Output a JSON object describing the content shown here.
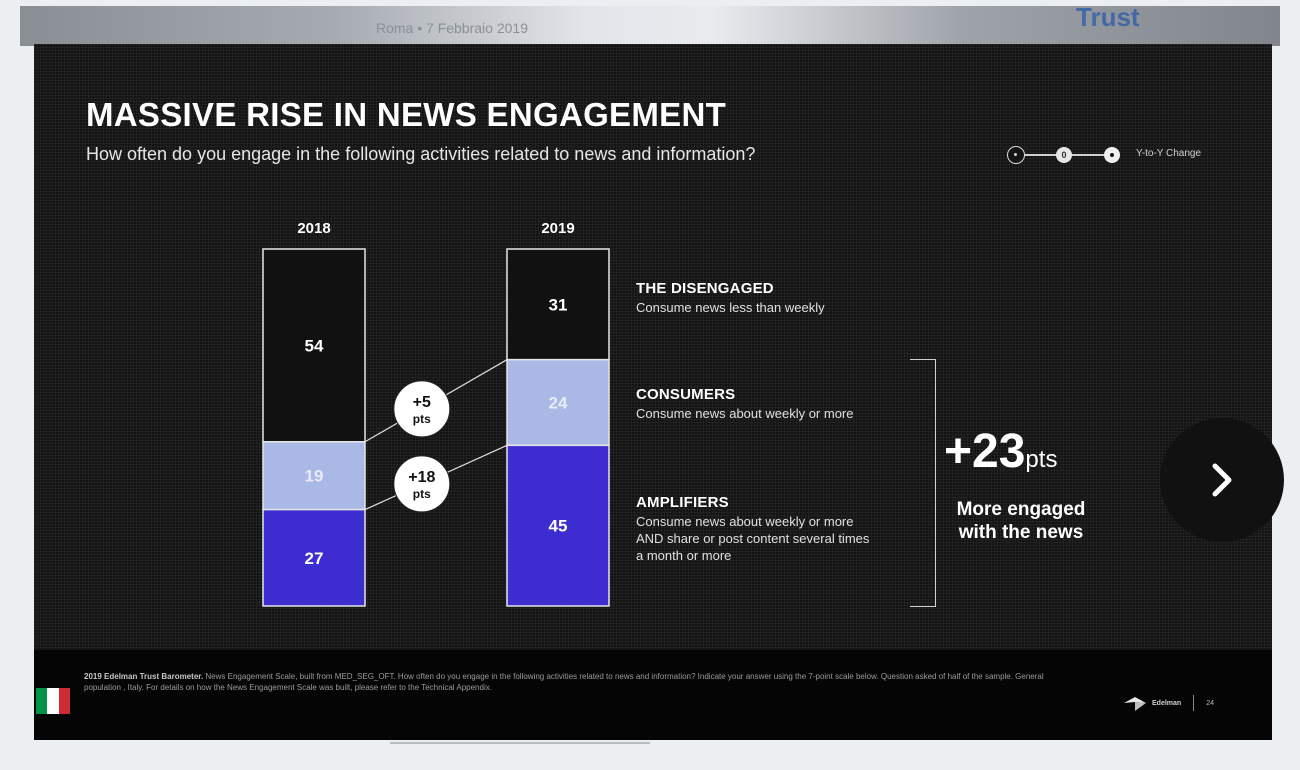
{
  "background": {
    "caption": "Roma • 7 Febbraio 2019",
    "title": "Trust"
  },
  "slide": {
    "title": "MASSIVE RISE IN NEWS ENGAGEMENT",
    "subtitle": "How often do you engage in the following activities related to news and information?",
    "legend_label": "Y-to-Y Change",
    "legend_dot_value": "0",
    "categories": [
      {
        "name": "THE DISENGAGED",
        "desc": "Consume news less than weekly"
      },
      {
        "name": "CONSUMERS",
        "desc": "Consume news about weekly or more"
      },
      {
        "name": "AMPLIFIERS",
        "desc": "Consume news about weekly or more AND share or post content several times a month or more"
      }
    ],
    "total_change_value": "+23",
    "total_change_unit": "pts",
    "total_change_caption": "More engaged with the news"
  },
  "chart_data": {
    "type": "bar",
    "stacked": true,
    "categories": [
      "2018",
      "2019"
    ],
    "series": [
      {
        "name": "THE DISENGAGED",
        "values": [
          54,
          31
        ],
        "color": "#111111"
      },
      {
        "name": "CONSUMERS",
        "values": [
          19,
          24
        ],
        "color": "#a9b8e4"
      },
      {
        "name": "AMPLIFIERS",
        "values": [
          27,
          45
        ],
        "color": "#3d2ccf"
      }
    ],
    "changes": [
      {
        "value": "+5",
        "unit": "pts"
      },
      {
        "value": "+18",
        "unit": "pts"
      }
    ],
    "ylim": [
      0,
      100
    ]
  },
  "footer": {
    "source_bold": "2019 Edelman Trust Barometer.",
    "source_text": "News Engagement Scale, built from MED_SEG_OFT. How often do you engage in the following activities related to news and information? Indicate your answer using the 7-point scale below. Question asked of half of the sample. General population , Italy. For details on how the News Engagement Scale was built, please refer to the Technical Appendix.",
    "brand": "Edelman",
    "page_number": "24",
    "flag_colors": [
      "#009246",
      "#ffffff",
      "#ce2b37"
    ]
  },
  "colors": {
    "slide_bg": "#141414",
    "amplifiers": "#3d2ccf",
    "consumers": "#a9b8e4"
  }
}
